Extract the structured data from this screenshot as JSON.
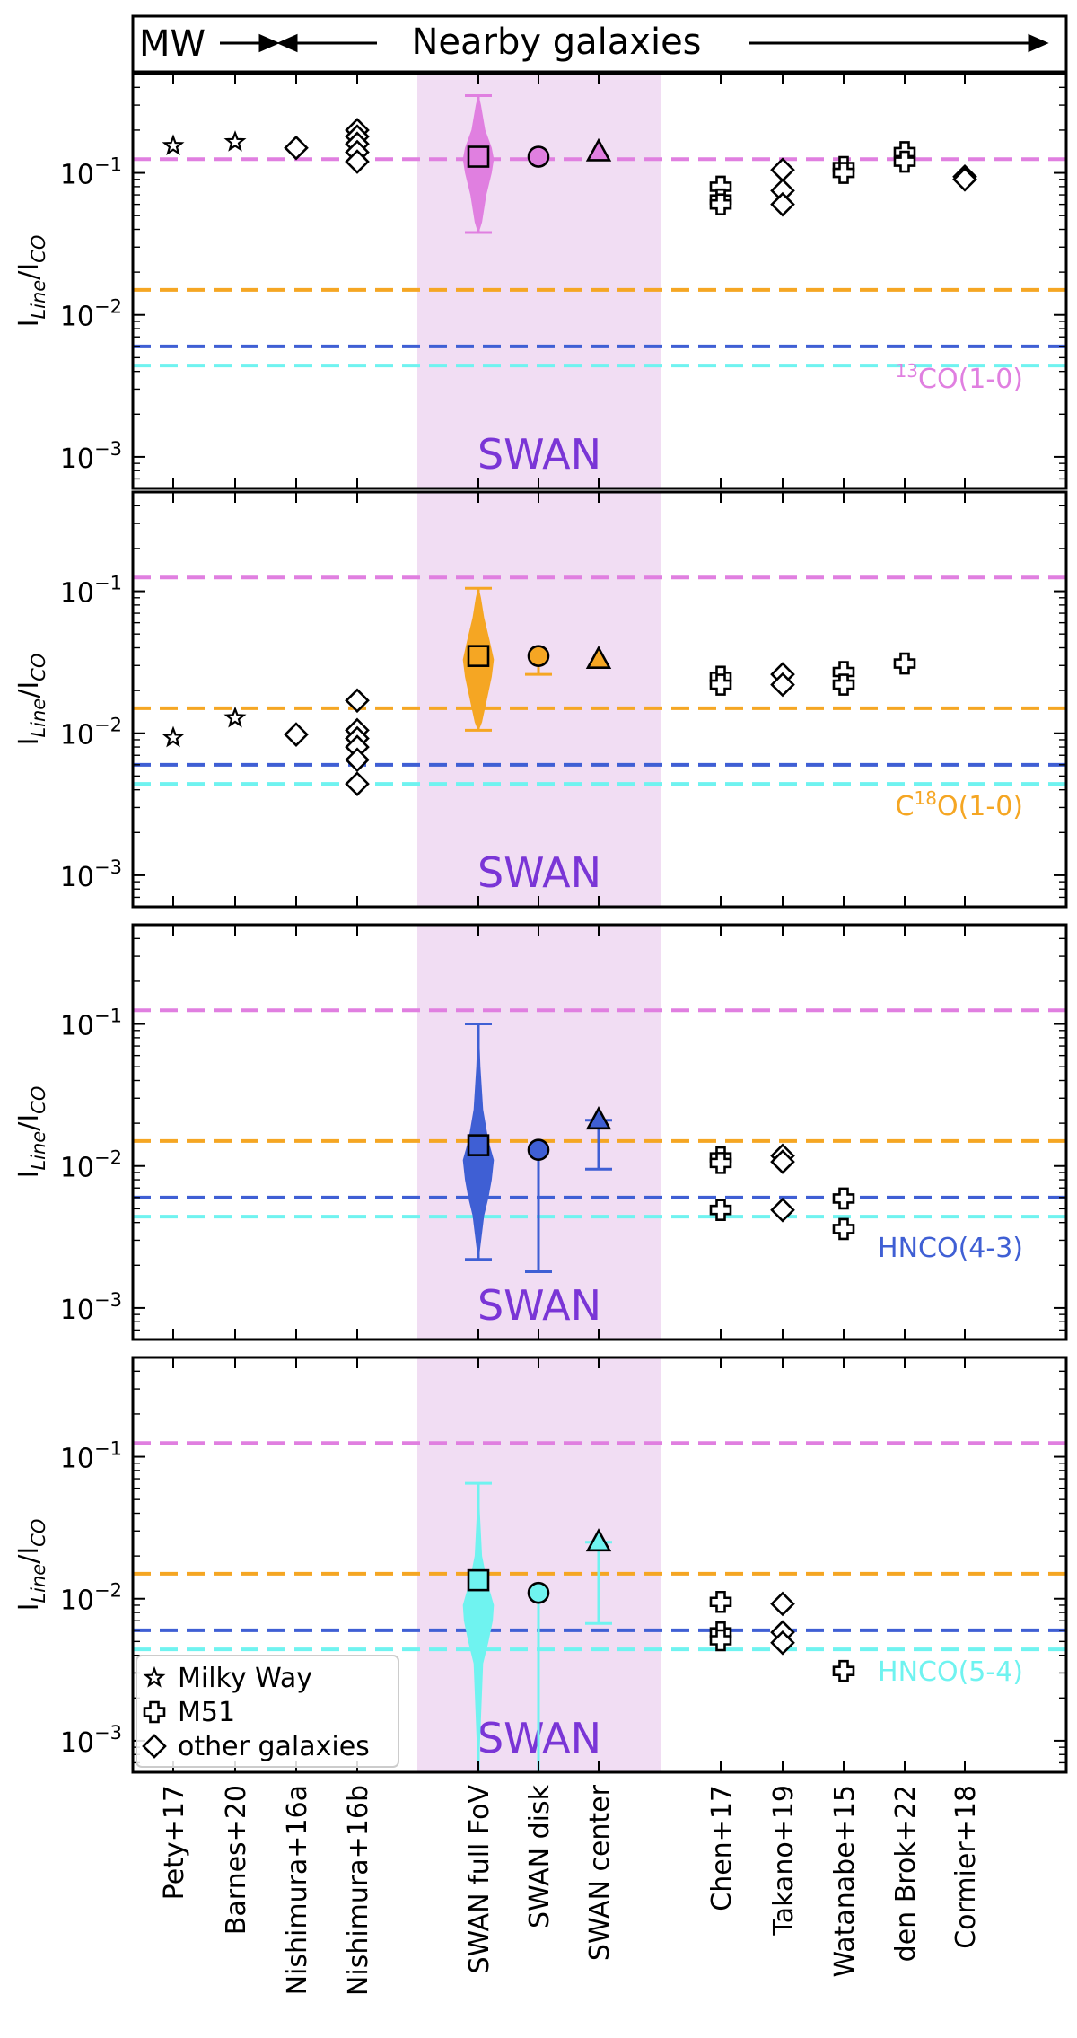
{
  "header": {
    "left_label": "MW",
    "right_label": "Nearby galaxies"
  },
  "colors": {
    "13CO": "#e07fe0",
    "C18O": "#f5a623",
    "HNCO43": "#3f5fd4",
    "HNCO54": "#6ff3f0",
    "swan_band": "#f1ddf3",
    "swan_text": "#7a35d6"
  },
  "chart_data": {
    "type": "scatter",
    "yscale": "log",
    "ylim": [
      0.0006,
      0.5
    ],
    "ylabel": "I_Line/I_CO",
    "yticks": [
      "10^-1",
      "10^-2",
      "10^-3"
    ],
    "categories": [
      "Pety+17",
      "Barnes+20",
      "Nishimura+16a",
      "Nishimura+16b",
      "SWAN full FoV",
      "SWAN disk",
      "SWAN center",
      "Chen+17",
      "Takano+19",
      "Watanabe+15",
      "den Brok+22",
      "Cormier+18"
    ],
    "band_label": "SWAN",
    "legend": {
      "placement": "lower-left",
      "entries": [
        {
          "symbol": "star",
          "label": "Milky Way"
        },
        {
          "symbol": "plus",
          "label": "M51"
        },
        {
          "symbol": "diamond",
          "label": "other galaxies"
        }
      ]
    },
    "reference_lines": [
      {
        "line": "13CO",
        "value": 0.125
      },
      {
        "line": "C18O",
        "value": 0.015
      },
      {
        "line": "HNCO43",
        "value": 0.006
      },
      {
        "line": "HNCO54",
        "value": 0.0044
      }
    ],
    "panels": [
      {
        "line": "13CO",
        "label_main": "CO(1-0)",
        "label_sup": "13",
        "label_post": "",
        "points": [
          {
            "cat": 0,
            "symbol": "star",
            "y": [
              0.155
            ]
          },
          {
            "cat": 1,
            "symbol": "star",
            "y": [
              0.165
            ]
          },
          {
            "cat": 2,
            "symbol": "diamond",
            "y": [
              0.15
            ]
          },
          {
            "cat": 3,
            "symbol": "diamond",
            "y": [
              0.2,
              0.18,
              0.16,
              0.14,
              0.12
            ]
          },
          {
            "cat": 7,
            "symbol": "plus",
            "y": [
              0.08,
              0.065,
              0.06
            ]
          },
          {
            "cat": 8,
            "symbol": "diamond",
            "y": [
              0.105,
              0.075,
              0.06
            ]
          },
          {
            "cat": 9,
            "symbol": "plus",
            "y": [
              0.11,
              0.1
            ]
          },
          {
            "cat": 10,
            "symbol": "plus",
            "y": [
              0.14,
              0.12
            ]
          },
          {
            "cat": 11,
            "symbol": "diamond",
            "y": [
              0.094,
              0.09
            ]
          }
        ],
        "swan": {
          "full_fov": {
            "median": 0.13,
            "min": 0.038,
            "max": 0.35,
            "violin": [
              [
                0.045,
                0.006
              ],
              [
                0.07,
                0.014
              ],
              [
                0.1,
                0.024
              ],
              [
                0.125,
                0.028
              ],
              [
                0.15,
                0.024
              ],
              [
                0.2,
                0.012
              ],
              [
                0.3,
                0.004
              ]
            ]
          },
          "disk": {
            "value": 0.13
          },
          "center": {
            "value": 0.14
          }
        }
      },
      {
        "line": "C18O",
        "label_main": "O(1-0)",
        "label_sup": "18",
        "label_pre": "C",
        "points": [
          {
            "cat": 0,
            "symbol": "star",
            "y": [
              0.0093
            ]
          },
          {
            "cat": 1,
            "symbol": "star",
            "y": [
              0.0128
            ]
          },
          {
            "cat": 2,
            "symbol": "diamond",
            "y": [
              0.0098
            ]
          },
          {
            "cat": 3,
            "symbol": "diamond",
            "y": [
              0.017,
              0.0105,
              0.0092,
              0.008,
              0.0065,
              0.0044
            ]
          },
          {
            "cat": 7,
            "symbol": "plus",
            "y": [
              0.025,
              0.022
            ]
          },
          {
            "cat": 8,
            "symbol": "diamond",
            "y": [
              0.026,
              0.022
            ]
          },
          {
            "cat": 9,
            "symbol": "plus",
            "y": [
              0.027,
              0.022
            ]
          },
          {
            "cat": 10,
            "symbol": "plus",
            "y": [
              0.031
            ]
          }
        ],
        "swan": {
          "full_fov": {
            "median": 0.035,
            "min": 0.0105,
            "max": 0.105,
            "violin": [
              [
                0.012,
                0.006
              ],
              [
                0.018,
                0.016
              ],
              [
                0.025,
                0.024
              ],
              [
                0.033,
                0.028
              ],
              [
                0.045,
                0.02
              ],
              [
                0.065,
                0.01
              ],
              [
                0.09,
                0.004
              ]
            ]
          },
          "disk": {
            "value": 0.035,
            "err_lo": 0.026,
            "err_hi": 0.035
          },
          "center": {
            "value": 0.033
          }
        }
      },
      {
        "line": "HNCO43",
        "label_main": "HNCO(4-3)",
        "points": [
          {
            "cat": 7,
            "symbol": "plus",
            "y": [
              0.0115,
              0.0105,
              0.0049
            ]
          },
          {
            "cat": 8,
            "symbol": "diamond",
            "y": [
              0.0118,
              0.0107,
              0.0049
            ]
          },
          {
            "cat": 9,
            "symbol": "plus",
            "y": [
              0.0059,
              0.0036
            ]
          }
        ],
        "swan": {
          "full_fov": {
            "median": 0.014,
            "min": 0.0022,
            "max": 0.1,
            "violin": [
              [
                0.0045,
                0.01
              ],
              [
                0.006,
                0.018
              ],
              [
                0.008,
                0.024
              ],
              [
                0.011,
                0.028
              ],
              [
                0.015,
                0.018
              ],
              [
                0.025,
                0.008
              ],
              [
                0.05,
                0.003
              ]
            ]
          },
          "disk": {
            "value": 0.013,
            "err_lo": 0.0018,
            "err_hi": 0.013
          },
          "center": {
            "value": 0.021,
            "err_lo": 0.0095,
            "err_hi": 0.021
          }
        }
      },
      {
        "line": "HNCO54",
        "label_main": "HNCO(5-4)",
        "points": [
          {
            "cat": 7,
            "symbol": "plus",
            "y": [
              0.0095,
              0.0058,
              0.0051
            ]
          },
          {
            "cat": 8,
            "symbol": "diamond",
            "y": [
              0.0092,
              0.0058,
              0.0049
            ]
          },
          {
            "cat": 9,
            "symbol": "plus",
            "y": [
              0.0031
            ]
          }
        ],
        "swan": {
          "full_fov": {
            "median": 0.0135,
            "min": 0.0006,
            "max": 0.065,
            "violin": [
              [
                0.0035,
                0.008
              ],
              [
                0.005,
                0.018
              ],
              [
                0.007,
                0.026
              ],
              [
                0.009,
                0.028
              ],
              [
                0.013,
                0.016
              ],
              [
                0.02,
                0.006
              ],
              [
                0.04,
                0.002
              ]
            ]
          },
          "disk": {
            "value": 0.011,
            "err_lo": 0.0006,
            "err_hi": 0.011
          },
          "center": {
            "value": 0.025,
            "err_lo": 0.0067,
            "err_hi": 0.025
          }
        }
      }
    ]
  }
}
